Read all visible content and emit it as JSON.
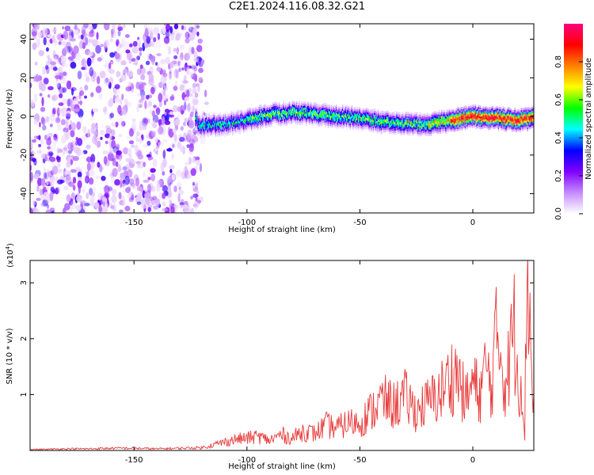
{
  "title": "C2E1.2024.116.08.32.G21",
  "chart_data": [
    {
      "type": "heatmap",
      "xlabel": "Height of straight line (km)",
      "ylabel": "Frequency (Hz)",
      "xlim": [
        -196,
        27
      ],
      "ylim": [
        -50,
        48
      ],
      "x_ticks": [
        -150,
        -100,
        -50,
        0
      ],
      "y_ticks": [
        -40,
        -20,
        0,
        20,
        40
      ],
      "ridge_trace": {
        "x": [
          -122,
          -110,
          -100,
          -90,
          -80,
          -70,
          -60,
          -50,
          -40,
          -30,
          -20,
          -10,
          0,
          10,
          20,
          26
        ],
        "y": [
          -5,
          -4,
          -2,
          1,
          2,
          1,
          0,
          -1,
          -3,
          -4,
          -4,
          -2,
          0,
          -1,
          -2,
          -1
        ]
      },
      "noise_region": "x < -120",
      "colorbar": {
        "label": "Normalized spectral amplitude",
        "range": [
          0,
          1
        ],
        "ticks": [
          0.0,
          0.2,
          0.4,
          0.6,
          0.8
        ],
        "colors": [
          "#ffffff",
          "#c58bff",
          "#8000ff",
          "#0000ff",
          "#00ffff",
          "#00ff00",
          "#ffff00",
          "#ff8000",
          "#ff0000",
          "#ff0080"
        ]
      }
    },
    {
      "type": "line",
      "xlabel": "Height of straight line (km)",
      "ylabel": "SNR (10 * v/v)",
      "y_multiplier": "(x10",
      "y_multiplier_exp": "4",
      "y_multiplier_close": ")",
      "xlim": [
        -196,
        27
      ],
      "ylim": [
        0,
        3.4
      ],
      "x_ticks": [
        -150,
        -100,
        -50,
        0
      ],
      "y_ticks": [
        1,
        2,
        3
      ],
      "color": "#e83a3a",
      "series": [
        {
          "x": [
            -196,
            -190,
            -180,
            -170,
            -160,
            -150,
            -140,
            -130,
            -120,
            -115,
            -110,
            -105,
            -100,
            -95,
            -90,
            -85,
            -80,
            -75,
            -70,
            -65,
            -60,
            -55,
            -50,
            -45,
            -40,
            -35,
            -30,
            -25,
            -20,
            -15,
            -10,
            -7,
            -5,
            -3,
            0,
            3,
            6,
            8,
            10,
            12,
            14,
            16,
            18,
            20,
            22,
            23,
            24,
            25,
            26,
            27
          ],
          "y": [
            0.02,
            0.02,
            0.03,
            0.03,
            0.04,
            0.04,
            0.03,
            0.04,
            0.05,
            0.1,
            0.15,
            0.2,
            0.22,
            0.25,
            0.18,
            0.28,
            0.22,
            0.35,
            0.3,
            0.45,
            0.4,
            0.5,
            0.5,
            0.7,
            0.9,
            0.8,
            0.95,
            0.7,
            0.85,
            1.0,
            1.3,
            1.4,
            1.1,
            0.9,
            1.2,
            1.0,
            1.5,
            1.1,
            1.9,
            2.0,
            1.2,
            1.5,
            2.3,
            1.4,
            1.1,
            0.3,
            3.3,
            2.9,
            1.4,
            1.0
          ]
        }
      ]
    }
  ]
}
